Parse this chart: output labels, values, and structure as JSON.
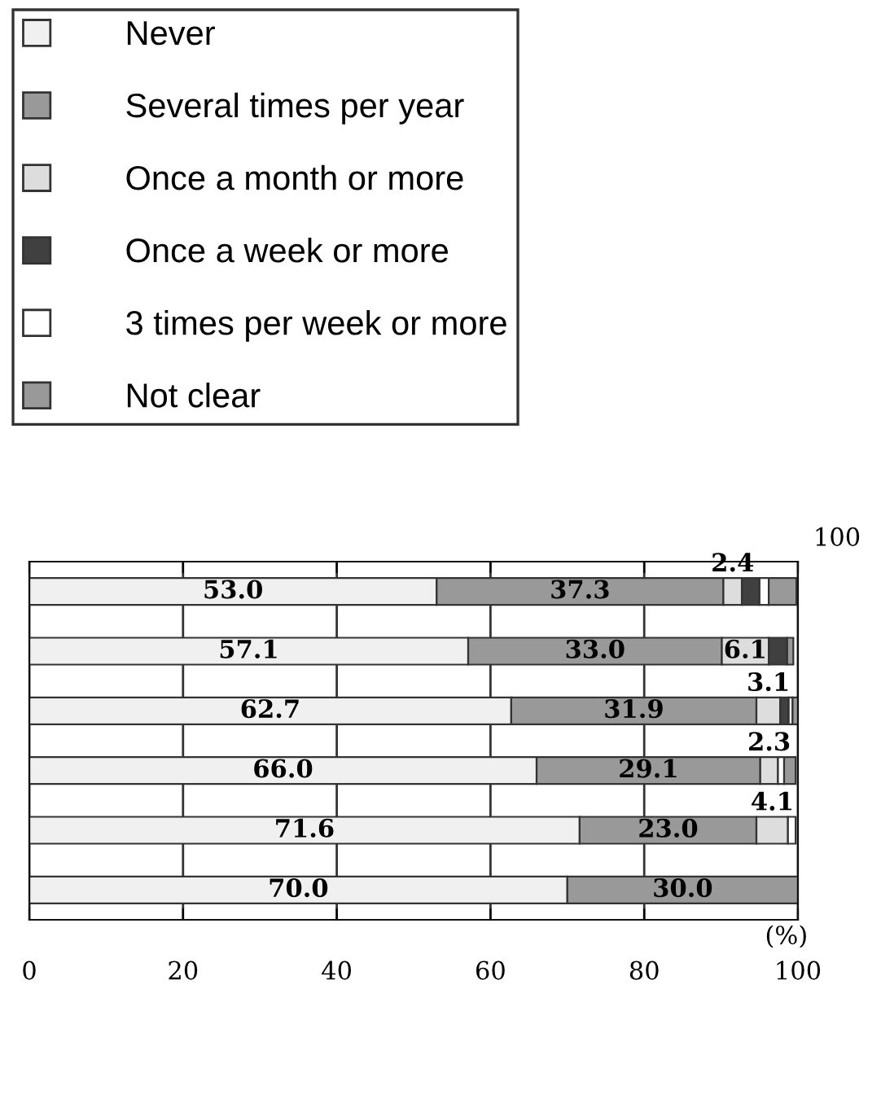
{
  "chart_data": {
    "type": "bar",
    "orientation": "horizontal",
    "stacked": true,
    "categories": [
      null,
      null,
      null,
      null,
      null,
      null
    ],
    "series": [
      {
        "name": "Never",
        "color": "#f0f0f0",
        "values": [
          53.0,
          57.1,
          62.7,
          66.0,
          71.6,
          70.0
        ],
        "value_labels": [
          "53.0",
          "57.1",
          "62.7",
          "66.0",
          "71.6",
          "70.0"
        ]
      },
      {
        "name": "Several times per year",
        "color": "#999999",
        "values": [
          37.3,
          33.0,
          31.9,
          29.1,
          23.0,
          30.0
        ],
        "value_labels": [
          "37.3",
          "33.0",
          "31.9",
          "29.1",
          "23.0",
          "30.0"
        ]
      },
      {
        "name": "Once a month or more",
        "color": "#dddddd",
        "values": [
          2.4,
          6.1,
          3.1,
          2.3,
          4.1,
          0
        ],
        "value_labels": [
          "2.4",
          "6.1",
          "3.1",
          "2.3",
          "4.1",
          null
        ]
      },
      {
        "name": "Once a week or more",
        "color": "#404040",
        "values": [
          2.3,
          2.4,
          1.1,
          0,
          null,
          0
        ]
      },
      {
        "name": "3 times per week or more",
        "color": "#ffffff",
        "values": [
          1.2,
          null,
          0.5,
          0.8,
          1.0,
          0
        ]
      },
      {
        "name": "Not clear",
        "color": "#999999",
        "values": [
          3.6,
          0.8,
          0.8,
          1.5,
          0,
          0
        ]
      }
    ],
    "xlim": [
      0,
      100
    ],
    "xticks": [
      0,
      20,
      40,
      60,
      80,
      100
    ],
    "grid": "x",
    "legend": "top",
    "annotations": [
      "100",
      "(%)"
    ]
  }
}
